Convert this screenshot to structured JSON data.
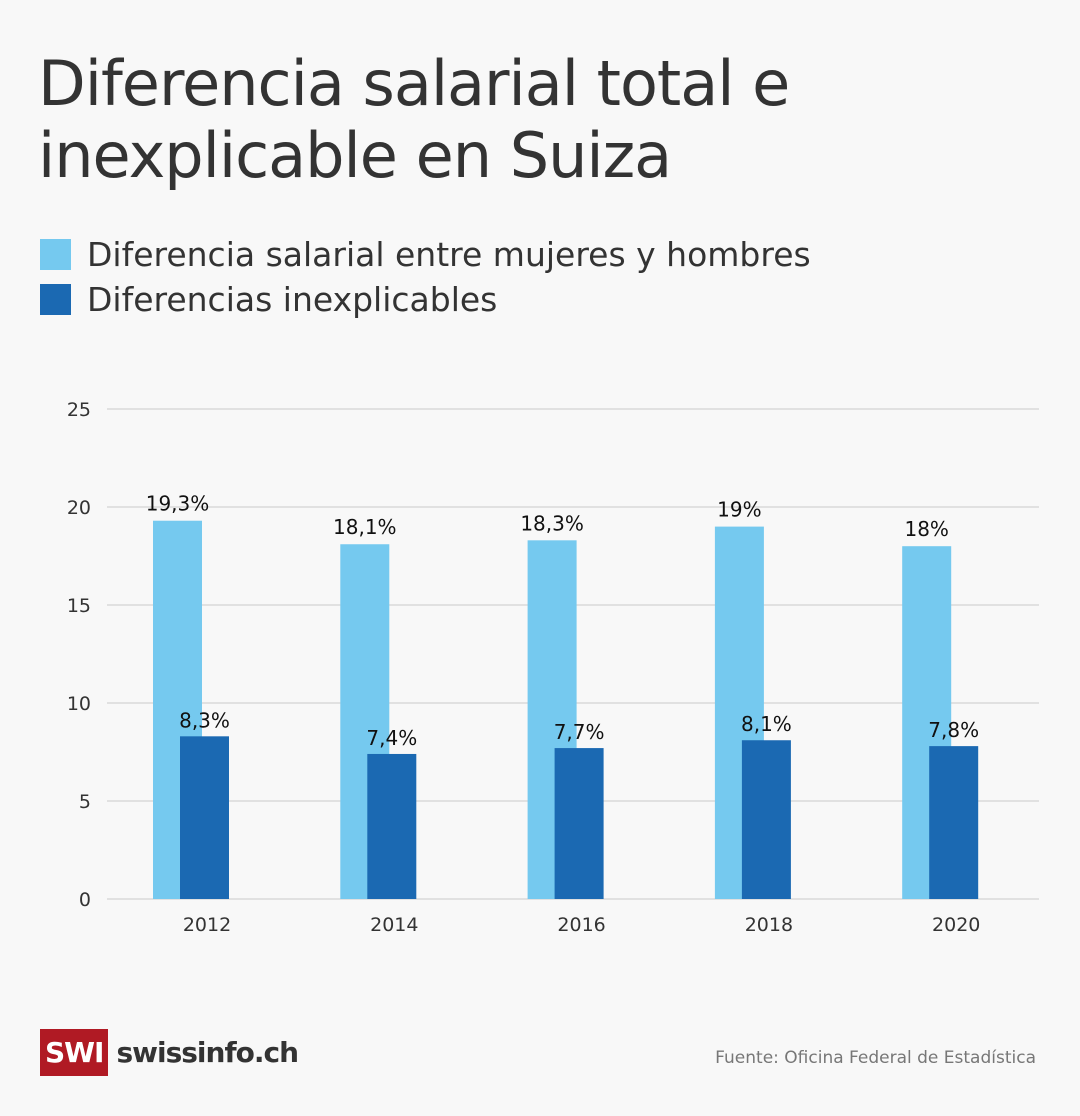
{
  "title": "Diferencia salarial total e inexplicable en Suiza",
  "legend": [
    {
      "label": "Diferencia salarial entre mujeres y hombres",
      "color": "#75c9ef"
    },
    {
      "label": "Diferencias inexplicables",
      "color": "#1b69b2"
    }
  ],
  "footer": {
    "logo_box": "SWI",
    "logo_text": "swissinfo.ch",
    "source": "Fuente: Oficina Federal de Estadística"
  },
  "chart_data": {
    "type": "bar",
    "title": "Diferencia salarial total e inexplicable en Suiza",
    "xlabel": "",
    "ylabel": "",
    "ylim": [
      0,
      25
    ],
    "yticks": [
      0,
      5,
      10,
      15,
      20,
      25
    ],
    "grid": true,
    "legend_position": "top-left",
    "categories": [
      "2012",
      "2014",
      "2016",
      "2018",
      "2020"
    ],
    "series": [
      {
        "name": "Diferencia salarial entre mujeres y hombres",
        "color": "#75c9ef",
        "values": [
          19.3,
          18.1,
          18.3,
          19,
          18
        ],
        "labels": [
          "19,3%",
          "18,1%",
          "18,3%",
          "19%",
          "18%"
        ]
      },
      {
        "name": "Diferencias inexplicables",
        "color": "#1b69b2",
        "values": [
          8.3,
          7.4,
          7.7,
          8.1,
          7.8
        ],
        "labels": [
          "8,3%",
          "7,4%",
          "7,7%",
          "8,1%",
          "7,8%"
        ]
      }
    ]
  }
}
